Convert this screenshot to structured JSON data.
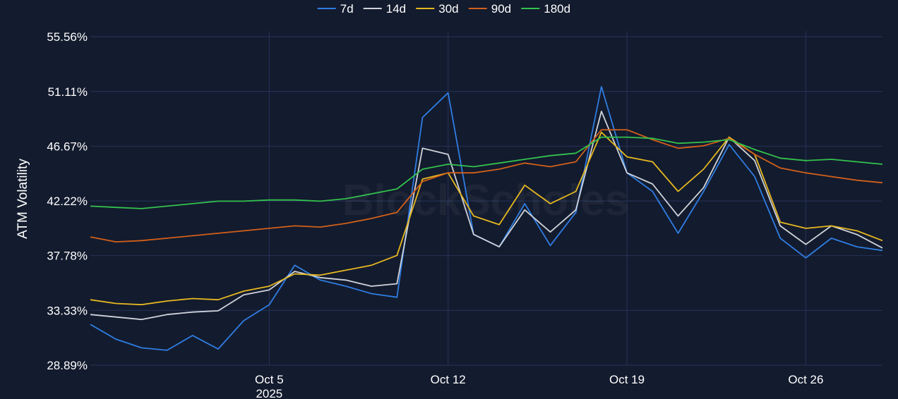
{
  "chart_data": {
    "type": "line",
    "title": "",
    "xlabel": "",
    "ylabel": "ATM Volatility",
    "watermark": "BlockScholes",
    "grid": true,
    "legend_position": "top-center",
    "background_color": "#131b2e",
    "grid_color": "#26345a",
    "y_ticks": [
      "28.89%",
      "33.33%",
      "37.78%",
      "42.22%",
      "46.67%",
      "51.11%",
      "55.56%"
    ],
    "y_tick_values": [
      28.89,
      33.33,
      37.78,
      42.22,
      46.67,
      51.11,
      55.56
    ],
    "ylim": [
      28.89,
      55.56
    ],
    "x_range": [
      "2025-09-28",
      "2025-10-29"
    ],
    "x_ticks": [
      {
        "date": "2025-10-05",
        "label": "Oct 5",
        "sublabel": "2025"
      },
      {
        "date": "2025-10-12",
        "label": "Oct 12",
        "sublabel": ""
      },
      {
        "date": "2025-10-19",
        "label": "Oct 19",
        "sublabel": ""
      },
      {
        "date": "2025-10-26",
        "label": "Oct 26",
        "sublabel": ""
      }
    ],
    "series": [
      {
        "name": "7d",
        "color": "#2f7de1",
        "x": [
          "2025-09-28",
          "2025-09-29",
          "2025-09-30",
          "2025-10-01",
          "2025-10-02",
          "2025-10-03",
          "2025-10-04",
          "2025-10-05",
          "2025-10-06",
          "2025-10-07",
          "2025-10-08",
          "2025-10-09",
          "2025-10-10",
          "2025-10-11",
          "2025-10-12",
          "2025-10-13",
          "2025-10-14",
          "2025-10-15",
          "2025-10-16",
          "2025-10-17",
          "2025-10-18",
          "2025-10-19",
          "2025-10-20",
          "2025-10-21",
          "2025-10-22",
          "2025-10-23",
          "2025-10-24",
          "2025-10-25",
          "2025-10-26",
          "2025-10-27",
          "2025-10-28",
          "2025-10-29"
        ],
        "values": [
          32.2,
          31.0,
          30.3,
          30.1,
          31.3,
          30.2,
          32.5,
          33.8,
          37.0,
          35.8,
          35.3,
          34.7,
          34.4,
          49.0,
          51.0,
          39.5,
          38.5,
          42.0,
          38.6,
          41.3,
          51.5,
          44.5,
          43.0,
          39.6,
          43.0,
          46.8,
          44.2,
          39.2,
          37.6,
          39.2,
          38.5,
          38.2
        ]
      },
      {
        "name": "14d",
        "color": "#cfd3da",
        "x": [
          "2025-09-28",
          "2025-09-29",
          "2025-09-30",
          "2025-10-01",
          "2025-10-02",
          "2025-10-03",
          "2025-10-04",
          "2025-10-05",
          "2025-10-06",
          "2025-10-07",
          "2025-10-08",
          "2025-10-09",
          "2025-10-10",
          "2025-10-11",
          "2025-10-12",
          "2025-10-13",
          "2025-10-14",
          "2025-10-15",
          "2025-10-16",
          "2025-10-17",
          "2025-10-18",
          "2025-10-19",
          "2025-10-20",
          "2025-10-21",
          "2025-10-22",
          "2025-10-23",
          "2025-10-24",
          "2025-10-25",
          "2025-10-26",
          "2025-10-27",
          "2025-10-28",
          "2025-10-29"
        ],
        "values": [
          33.0,
          32.8,
          32.6,
          33.0,
          33.2,
          33.3,
          34.6,
          35.0,
          36.5,
          36.0,
          35.8,
          35.3,
          35.5,
          46.5,
          46.0,
          39.5,
          38.5,
          41.5,
          39.7,
          41.5,
          49.5,
          44.5,
          43.6,
          41.0,
          43.3,
          47.4,
          45.5,
          40.2,
          38.7,
          40.2,
          39.5,
          38.4
        ]
      },
      {
        "name": "30d",
        "color": "#e6b820",
        "x": [
          "2025-09-28",
          "2025-09-29",
          "2025-09-30",
          "2025-10-01",
          "2025-10-02",
          "2025-10-03",
          "2025-10-04",
          "2025-10-05",
          "2025-10-06",
          "2025-10-07",
          "2025-10-08",
          "2025-10-09",
          "2025-10-10",
          "2025-10-11",
          "2025-10-12",
          "2025-10-13",
          "2025-10-14",
          "2025-10-15",
          "2025-10-16",
          "2025-10-17",
          "2025-10-18",
          "2025-10-19",
          "2025-10-20",
          "2025-10-21",
          "2025-10-22",
          "2025-10-23",
          "2025-10-24",
          "2025-10-25",
          "2025-10-26",
          "2025-10-27",
          "2025-10-28",
          "2025-10-29"
        ],
        "values": [
          34.2,
          33.9,
          33.8,
          34.1,
          34.3,
          34.2,
          34.9,
          35.3,
          36.3,
          36.2,
          36.6,
          37.0,
          37.8,
          44.0,
          44.5,
          41.0,
          40.3,
          43.5,
          42.0,
          43.0,
          47.8,
          45.8,
          45.4,
          43.0,
          44.8,
          47.4,
          46.0,
          40.5,
          40.0,
          40.2,
          39.8,
          39.0
        ]
      },
      {
        "name": "90d",
        "color": "#d2601a",
        "x": [
          "2025-09-28",
          "2025-09-29",
          "2025-09-30",
          "2025-10-01",
          "2025-10-02",
          "2025-10-03",
          "2025-10-04",
          "2025-10-05",
          "2025-10-06",
          "2025-10-07",
          "2025-10-08",
          "2025-10-09",
          "2025-10-10",
          "2025-10-11",
          "2025-10-12",
          "2025-10-13",
          "2025-10-14",
          "2025-10-15",
          "2025-10-16",
          "2025-10-17",
          "2025-10-18",
          "2025-10-19",
          "2025-10-20",
          "2025-10-21",
          "2025-10-22",
          "2025-10-23",
          "2025-10-24",
          "2025-10-25",
          "2025-10-26",
          "2025-10-27",
          "2025-10-28",
          "2025-10-29"
        ],
        "values": [
          39.3,
          38.9,
          39.0,
          39.2,
          39.4,
          39.6,
          39.8,
          40.0,
          40.2,
          40.1,
          40.4,
          40.8,
          41.3,
          43.8,
          44.5,
          44.5,
          44.8,
          45.3,
          45.0,
          45.4,
          48.0,
          48.0,
          47.2,
          46.5,
          46.7,
          47.3,
          46.0,
          44.9,
          44.5,
          44.2,
          43.9,
          43.7
        ]
      },
      {
        "name": "180d",
        "color": "#33c24d",
        "x": [
          "2025-09-28",
          "2025-09-29",
          "2025-09-30",
          "2025-10-01",
          "2025-10-02",
          "2025-10-03",
          "2025-10-04",
          "2025-10-05",
          "2025-10-06",
          "2025-10-07",
          "2025-10-08",
          "2025-10-09",
          "2025-10-10",
          "2025-10-11",
          "2025-10-12",
          "2025-10-13",
          "2025-10-14",
          "2025-10-15",
          "2025-10-16",
          "2025-10-17",
          "2025-10-18",
          "2025-10-19",
          "2025-10-20",
          "2025-10-21",
          "2025-10-22",
          "2025-10-23",
          "2025-10-24",
          "2025-10-25",
          "2025-10-26",
          "2025-10-27",
          "2025-10-28",
          "2025-10-29"
        ],
        "values": [
          41.8,
          41.7,
          41.6,
          41.8,
          42.0,
          42.2,
          42.2,
          42.3,
          42.3,
          42.2,
          42.4,
          42.8,
          43.2,
          44.8,
          45.2,
          45.0,
          45.3,
          45.6,
          45.9,
          46.1,
          47.4,
          47.4,
          47.3,
          46.9,
          47.0,
          47.2,
          46.4,
          45.7,
          45.5,
          45.6,
          45.4,
          45.2
        ]
      }
    ]
  }
}
